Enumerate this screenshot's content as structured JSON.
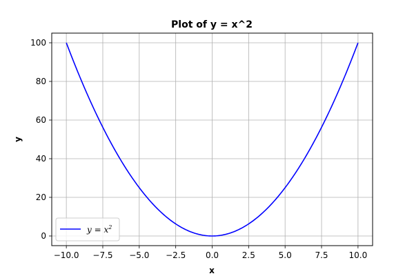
{
  "chart_data": {
    "type": "line",
    "title": "Plot of y = x^2",
    "xlabel": "x",
    "ylabel": "y",
    "xlim": [
      -11,
      11
    ],
    "ylim": [
      -5,
      105
    ],
    "xticks": [
      -10.0,
      -7.5,
      -5.0,
      -2.5,
      0.0,
      2.5,
      5.0,
      7.5,
      10.0
    ],
    "xtick_labels": [
      "−10.0",
      "−7.5",
      "−5.0",
      "−2.5",
      "0.0",
      "2.5",
      "5.0",
      "7.5",
      "10.0"
    ],
    "yticks": [
      0,
      20,
      40,
      60,
      80,
      100
    ],
    "ytick_labels": [
      "0",
      "20",
      "40",
      "60",
      "80",
      "100"
    ],
    "grid": true,
    "legend_position": "lower-left",
    "series": [
      {
        "name_base": "y = x",
        "name_exponent": "2",
        "color": "#0000ff",
        "x": [
          -10,
          -9,
          -8,
          -7,
          -6,
          -5,
          -4,
          -3,
          -2,
          -1,
          0,
          1,
          2,
          3,
          4,
          5,
          6,
          7,
          8,
          9,
          10
        ],
        "y": [
          100,
          81,
          64,
          49,
          36,
          25,
          16,
          9,
          4,
          1,
          0,
          1,
          4,
          9,
          16,
          25,
          36,
          49,
          64,
          81,
          100
        ]
      }
    ]
  }
}
